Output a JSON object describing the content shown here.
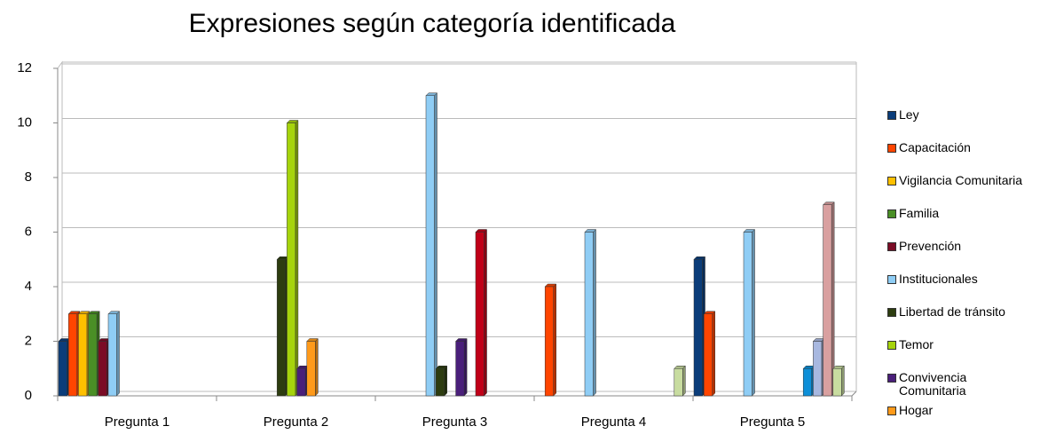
{
  "chart_data": {
    "type": "bar",
    "title": "Expresiones según categoría identificada",
    "categories": [
      "Pregunta 1",
      "Pregunta 2",
      "Pregunta 3",
      "Pregunta 4",
      "Pregunta 5"
    ],
    "ylim": [
      0,
      12
    ],
    "yticks": [
      0,
      2,
      4,
      6,
      8,
      10,
      12
    ],
    "grid": true,
    "series": [
      {
        "name": "Ley",
        "color": "#0b3d7a",
        "values": [
          2,
          null,
          null,
          null,
          5
        ]
      },
      {
        "name": "Capacitación",
        "color": "#ff4500",
        "values": [
          3,
          null,
          null,
          4,
          3
        ]
      },
      {
        "name": "Vigilancia Comunitaria",
        "color": "#ffc000",
        "values": [
          3,
          null,
          null,
          null,
          null
        ]
      },
      {
        "name": "Familia",
        "color": "#4a8f26",
        "values": [
          3,
          null,
          null,
          null,
          null
        ]
      },
      {
        "name": "Prevención",
        "color": "#7b0c26",
        "values": [
          2,
          null,
          null,
          null,
          null
        ]
      },
      {
        "name": "Institucionales",
        "color": "#8fcdf5",
        "values": [
          3,
          null,
          11,
          6,
          6
        ]
      },
      {
        "name": "Libertad de tránsito",
        "color": "#2d3d10",
        "values": [
          null,
          5,
          1,
          null,
          null
        ]
      },
      {
        "name": "Temor",
        "color": "#a6d40c",
        "values": [
          null,
          10,
          null,
          null,
          null
        ]
      },
      {
        "name": "Convivencia Comunitaria",
        "color": "#4a1f7a",
        "values": [
          null,
          1,
          2,
          null,
          null
        ]
      },
      {
        "name": "Hogar",
        "color": "#ff9a1a",
        "values": [
          null,
          2,
          null,
          null,
          null
        ]
      },
      {
        "color": "#c00018",
        "values": [
          null,
          null,
          6,
          null,
          null
        ]
      },
      {
        "color": "#0d8fd8",
        "values": [
          null,
          null,
          null,
          null,
          1
        ]
      },
      {
        "color": "#a8b8e0",
        "values": [
          null,
          null,
          null,
          null,
          2
        ]
      },
      {
        "color": "#d9a0a0",
        "values": [
          null,
          null,
          null,
          null,
          7
        ]
      },
      {
        "color": "#c8dca0",
        "values": [
          null,
          null,
          null,
          1,
          1
        ]
      }
    ]
  }
}
